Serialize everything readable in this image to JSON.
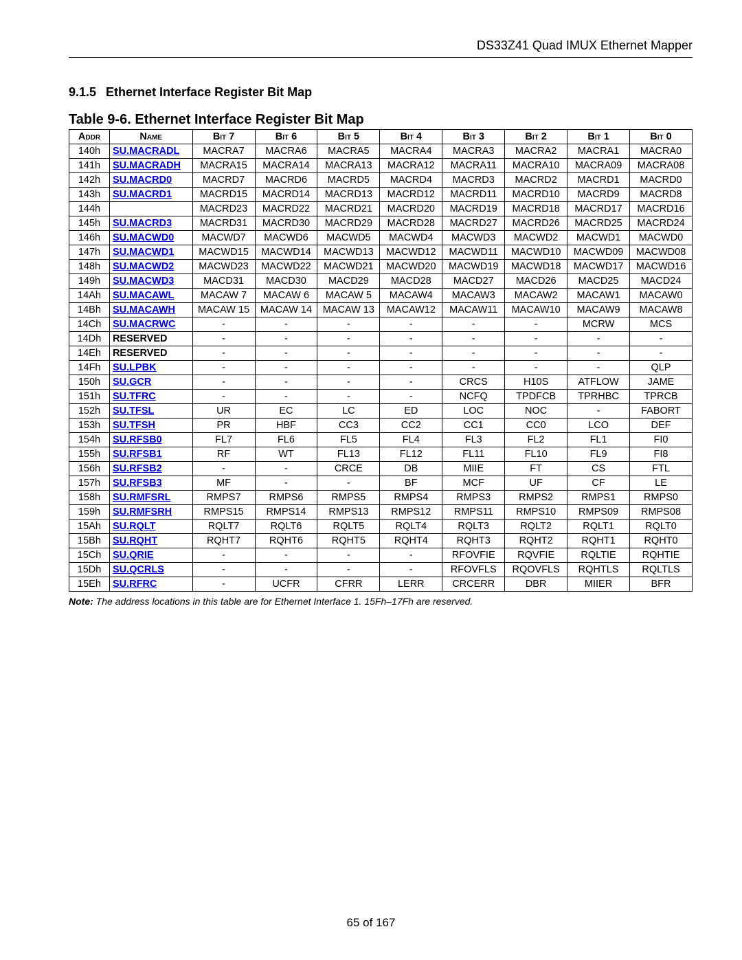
{
  "doc_header": "DS33Z41 Quad IMUX Ethernet Mapper",
  "section": {
    "number": "9.1.5",
    "title": "Ethernet Interface Register Bit Map"
  },
  "table_title": "Table 9-6. Ethernet Interface Register Bit Map",
  "columns": [
    "Addr",
    "Name",
    "Bit 7",
    "Bit 6",
    "Bit 5",
    "Bit 4",
    "Bit 3",
    "Bit 2",
    "Bit 1",
    "Bit 0"
  ],
  "link_color": "#0000cc",
  "rows": [
    {
      "addr": "140h",
      "name": "SU.MACRADL",
      "link": true,
      "b": [
        "MACRA7",
        "MACRA6",
        "MACRA5",
        "MACRA4",
        "MACRA3",
        "MACRA2",
        "MACRA1",
        "MACRA0"
      ]
    },
    {
      "addr": "141h",
      "name": "SU.MACRADH",
      "link": true,
      "b": [
        "MACRA15",
        "MACRA14",
        "MACRA13",
        "MACRA12",
        "MACRA11",
        "MACRA10",
        "MACRA09",
        "MACRA08"
      ]
    },
    {
      "addr": "142h",
      "name": "SU.MACRD0",
      "link": true,
      "b": [
        "MACRD7",
        "MACRD6",
        "MACRD5",
        "MACRD4",
        "MACRD3",
        "MACRD2",
        "MACRD1",
        "MACRD0"
      ]
    },
    {
      "addr": "143h",
      "name": "SU.MACRD1",
      "link": true,
      "b": [
        "MACRD15",
        "MACRD14",
        "MACRD13",
        "MACRD12",
        "MACRD11",
        "MACRD10",
        "MACRD9",
        "MACRD8"
      ]
    },
    {
      "addr": "144h",
      "name": "",
      "link": false,
      "b": [
        "MACRD23",
        "MACRD22",
        "MACRD21",
        "MACRD20",
        "MACRD19",
        "MACRD18",
        "MACRD17",
        "MACRD16"
      ]
    },
    {
      "addr": "145h",
      "name": "SU.MACRD3",
      "link": true,
      "b": [
        "MACRD31",
        "MACRD30",
        "MACRD29",
        "MACRD28",
        "MACRD27",
        "MACRD26",
        "MACRD25",
        "MACRD24"
      ]
    },
    {
      "addr": "146h",
      "name": "SU.MACWD0",
      "link": true,
      "b": [
        "MACWD7",
        "MACWD6",
        "MACWD5",
        "MACWD4",
        "MACWD3",
        "MACWD2",
        "MACWD1",
        "MACWD0"
      ]
    },
    {
      "addr": "147h",
      "name": "SU.MACWD1",
      "link": true,
      "b": [
        "MACWD15",
        "MACWD14",
        "MACWD13",
        "MACWD12",
        "MACWD11",
        "MACWD10",
        "MACWD09",
        "MACWD08"
      ]
    },
    {
      "addr": "148h",
      "name": "SU.MACWD2",
      "link": true,
      "b": [
        "MACWD23",
        "MACWD22",
        "MACWD21",
        "MACWD20",
        "MACWD19",
        "MACWD18",
        "MACWD17",
        "MACWD16"
      ]
    },
    {
      "addr": "149h",
      "name": "SU.MACWD3",
      "link": true,
      "b": [
        "MACD31",
        "MACD30",
        "MACD29",
        "MACD28",
        "MACD27",
        "MACD26",
        "MACD25",
        "MACD24"
      ]
    },
    {
      "addr": "14Ah",
      "name": "SU.MACAWL",
      "link": true,
      "b": [
        "MACAW 7",
        "MACAW 6",
        "MACAW 5",
        "MACAW4",
        "MACAW3",
        "MACAW2",
        "MACAW1",
        "MACAW0"
      ]
    },
    {
      "addr": "14Bh",
      "name": "SU.MACAWH",
      "link": true,
      "b": [
        "MACAW 15",
        "MACAW 14",
        "MACAW 13",
        "MACAW12",
        "MACAW11",
        "MACAW10",
        "MACAW9",
        "MACAW8"
      ]
    },
    {
      "addr": "14Ch",
      "name": "SU.MACRWC",
      "link": true,
      "b": [
        "-",
        "-",
        "-",
        "-",
        "-",
        "-",
        "MCRW",
        "MCS"
      ]
    },
    {
      "addr": "14Dh",
      "name": "RESERVED",
      "link": false,
      "b": [
        "-",
        "-",
        "-",
        "-",
        "-",
        "-",
        "-",
        "-"
      ]
    },
    {
      "addr": "14Eh",
      "name": "RESERVED",
      "link": false,
      "b": [
        "-",
        "-",
        "-",
        "-",
        "-",
        "-",
        "-",
        "-"
      ]
    },
    {
      "addr": "14Fh",
      "name": "SU.LPBK",
      "link": true,
      "b": [
        "-",
        "-",
        "-",
        "-",
        "-",
        "-",
        "-",
        "QLP"
      ]
    },
    {
      "addr": "150h",
      "name": "SU.GCR",
      "link": true,
      "b": [
        "-",
        "-",
        "-",
        "-",
        "CRCS",
        "H10S",
        "ATFLOW",
        "JAME"
      ]
    },
    {
      "addr": "151h",
      "name": "SU.TFRC",
      "link": true,
      "b": [
        "-",
        "-",
        "-",
        "-",
        "NCFQ",
        "TPDFCB",
        "TPRHBC",
        "TPRCB"
      ]
    },
    {
      "addr": "152h",
      "name": "SU.TFSL",
      "link": true,
      "b": [
        "UR",
        "EC",
        "LC",
        "ED",
        "LOC",
        "NOC",
        "-",
        "FABORT"
      ]
    },
    {
      "addr": "153h",
      "name": "SU.TFSH",
      "link": true,
      "b": [
        "PR",
        "HBF",
        "CC3",
        "CC2",
        "CC1",
        "CC0",
        "LCO",
        "DEF"
      ]
    },
    {
      "addr": "154h",
      "name": "SU.RFSB0",
      "link": true,
      "b": [
        "FL7",
        "FL6",
        "FL5",
        "FL4",
        "FL3",
        "FL2",
        "FL1",
        "FI0"
      ]
    },
    {
      "addr": "155h",
      "name": "SU.RFSB1",
      "link": true,
      "b": [
        "RF",
        "WT",
        "FL13",
        "FL12",
        "FL11",
        "FL10",
        "FL9",
        "FI8"
      ]
    },
    {
      "addr": "156h",
      "name": "SU.RFSB2",
      "link": true,
      "b": [
        "-",
        "-",
        "CRCE",
        "DB",
        "MIIE",
        "FT",
        "CS",
        "FTL"
      ]
    },
    {
      "addr": "157h",
      "name": "SU.RFSB3",
      "link": true,
      "b": [
        "MF",
        "-",
        "-",
        "BF",
        "MCF",
        "UF",
        "CF",
        "LE"
      ]
    },
    {
      "addr": "158h",
      "name": "SU.RMFSRL",
      "link": true,
      "b": [
        "RMPS7",
        "RMPS6",
        "RMPS5",
        "RMPS4",
        "RMPS3",
        "RMPS2",
        "RMPS1",
        "RMPS0"
      ]
    },
    {
      "addr": "159h",
      "name": "SU.RMFSRH",
      "link": true,
      "b": [
        "RMPS15",
        "RMPS14",
        "RMPS13",
        "RMPS12",
        "RMPS11",
        "RMPS10",
        "RMPS09",
        "RMPS08"
      ]
    },
    {
      "addr": "15Ah",
      "name": "SU.RQLT",
      "link": true,
      "b": [
        "RQLT7",
        "RQLT6",
        "RQLT5",
        "RQLT4",
        "RQLT3",
        "RQLT2",
        "RQLT1",
        "RQLT0"
      ]
    },
    {
      "addr": "15Bh",
      "name": "SU.RQHT",
      "link": true,
      "b": [
        "RQHT7",
        "RQHT6",
        "RQHT5",
        "RQHT4",
        "RQHT3",
        "RQHT2",
        "RQHT1",
        "RQHT0"
      ]
    },
    {
      "addr": "15Ch",
      "name": "SU.QRIE",
      "link": true,
      "b": [
        "-",
        "-",
        "-",
        "-",
        "RFOVFIE",
        "RQVFIE",
        "RQLTIE",
        "RQHTIE"
      ]
    },
    {
      "addr": "15Dh",
      "name": "SU.QCRLS",
      "link": true,
      "b": [
        "-",
        "-",
        "-",
        "-",
        "RFOVFLS",
        "RQOVFLS",
        "RQHTLS",
        "RQLTLS"
      ]
    },
    {
      "addr": "15Eh",
      "name": "SU.RFRC",
      "link": true,
      "b": [
        "-",
        "UCFR",
        "CFRR",
        "LERR",
        "CRCERR",
        "DBR",
        "MIIER",
        "BFR"
      ]
    }
  ],
  "note_label": "Note:",
  "note_text": " The address locations in this table are for Ethernet Interface 1. 15Fh–17Fh are reserved.",
  "footer": "65 of 167"
}
